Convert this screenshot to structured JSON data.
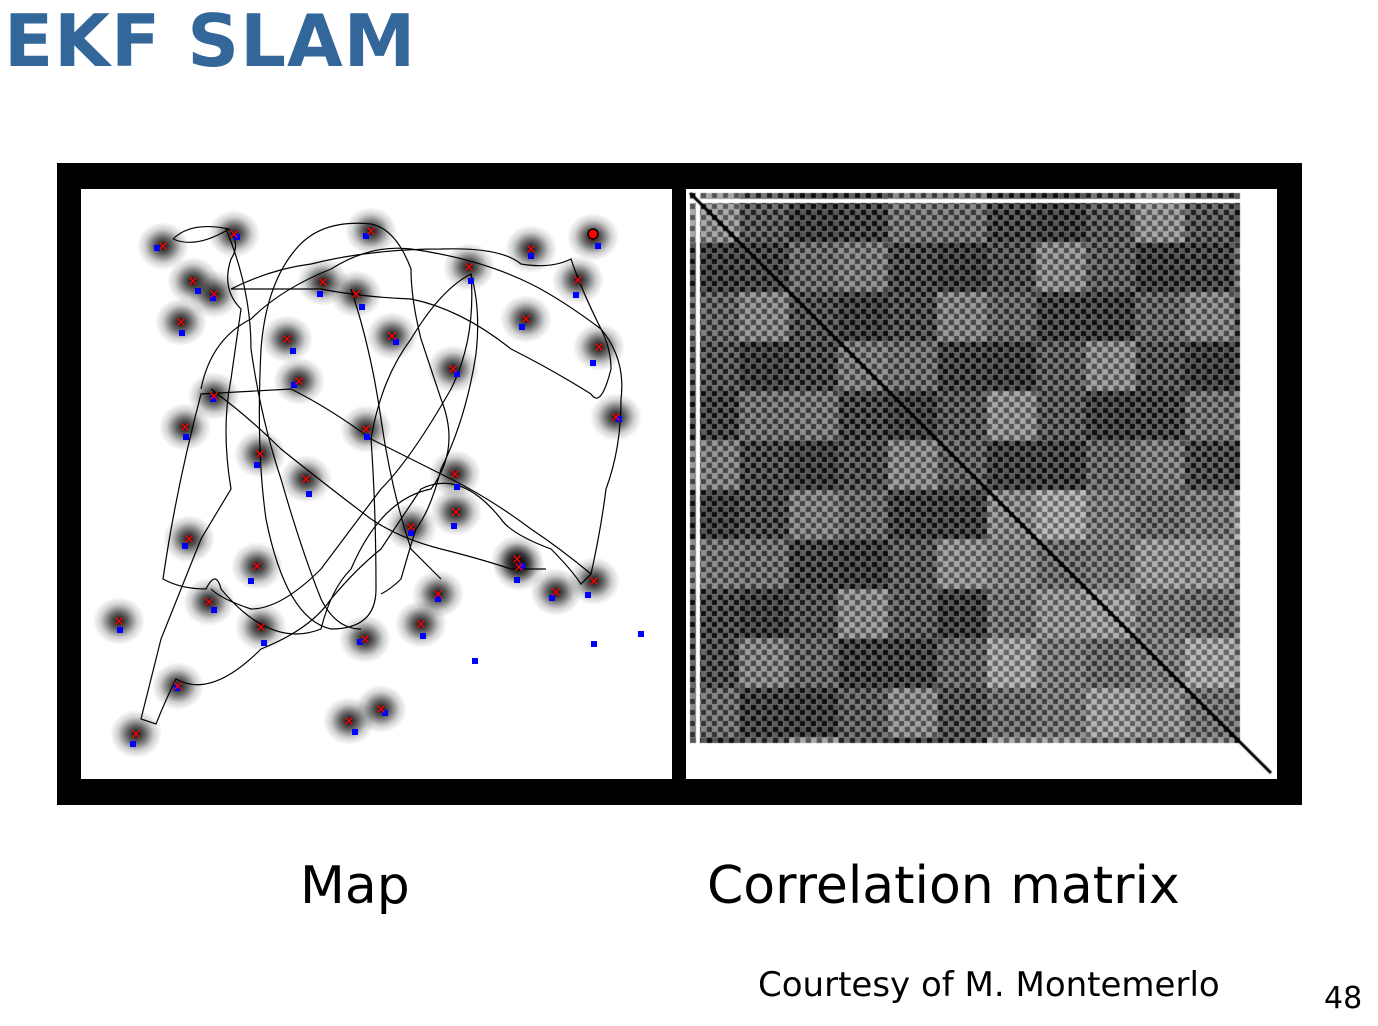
{
  "slide": {
    "title": "EKF SLAM",
    "captions": {
      "map": "Map",
      "matrix": "Correlation matrix"
    },
    "credit": "Courtesy of M. Montemerlo",
    "page_number": "48"
  },
  "colors": {
    "title": "#336699",
    "frame": "#000000",
    "trajectory": "#000000",
    "landmark_estimate": "#ff0000",
    "landmark_true": "#0000ff",
    "robot": "#ff0000"
  },
  "icons": {
    "landmark_estimate": "red-x-marker",
    "landmark_true": "blue-dot-marker",
    "uncertainty": "gaussian-blob",
    "robot": "red-circle-marker"
  }
}
